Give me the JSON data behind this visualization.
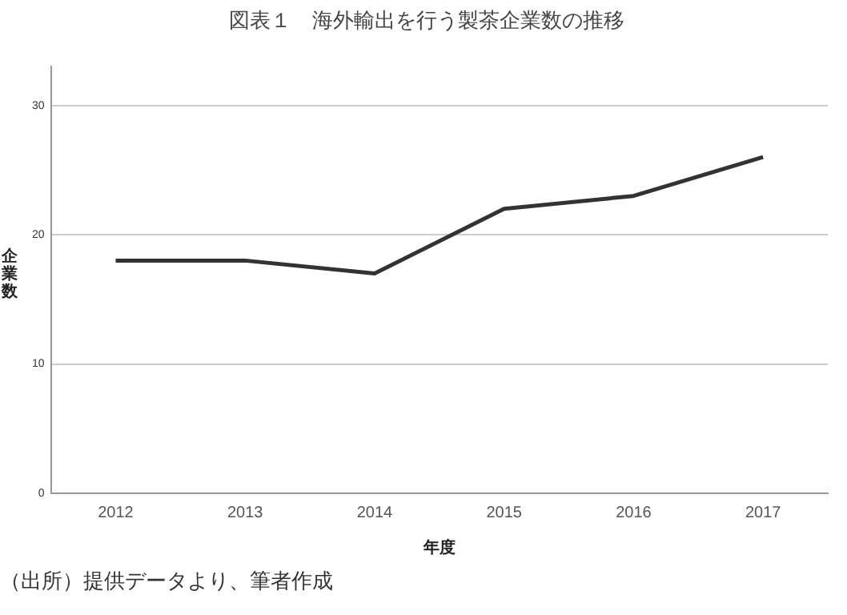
{
  "chart_data": {
    "type": "line",
    "title": "図表１　海外輸出を行う製茶企業数の推移",
    "xlabel": "年度",
    "ylabel": "企業数",
    "categories": [
      "2012",
      "2013",
      "2014",
      "2015",
      "2016",
      "2017"
    ],
    "series": [
      {
        "color": "#333333",
        "values": [
          18,
          18,
          17,
          22,
          23,
          26
        ]
      }
    ],
    "ylim": [
      0,
      33
    ],
    "yticks": [
      0,
      10,
      20,
      30
    ],
    "grid": "y",
    "legend": false,
    "marker": "none",
    "line_style": "solid",
    "annotations": [
      "（出所）提供データより、筆者作成"
    ]
  }
}
